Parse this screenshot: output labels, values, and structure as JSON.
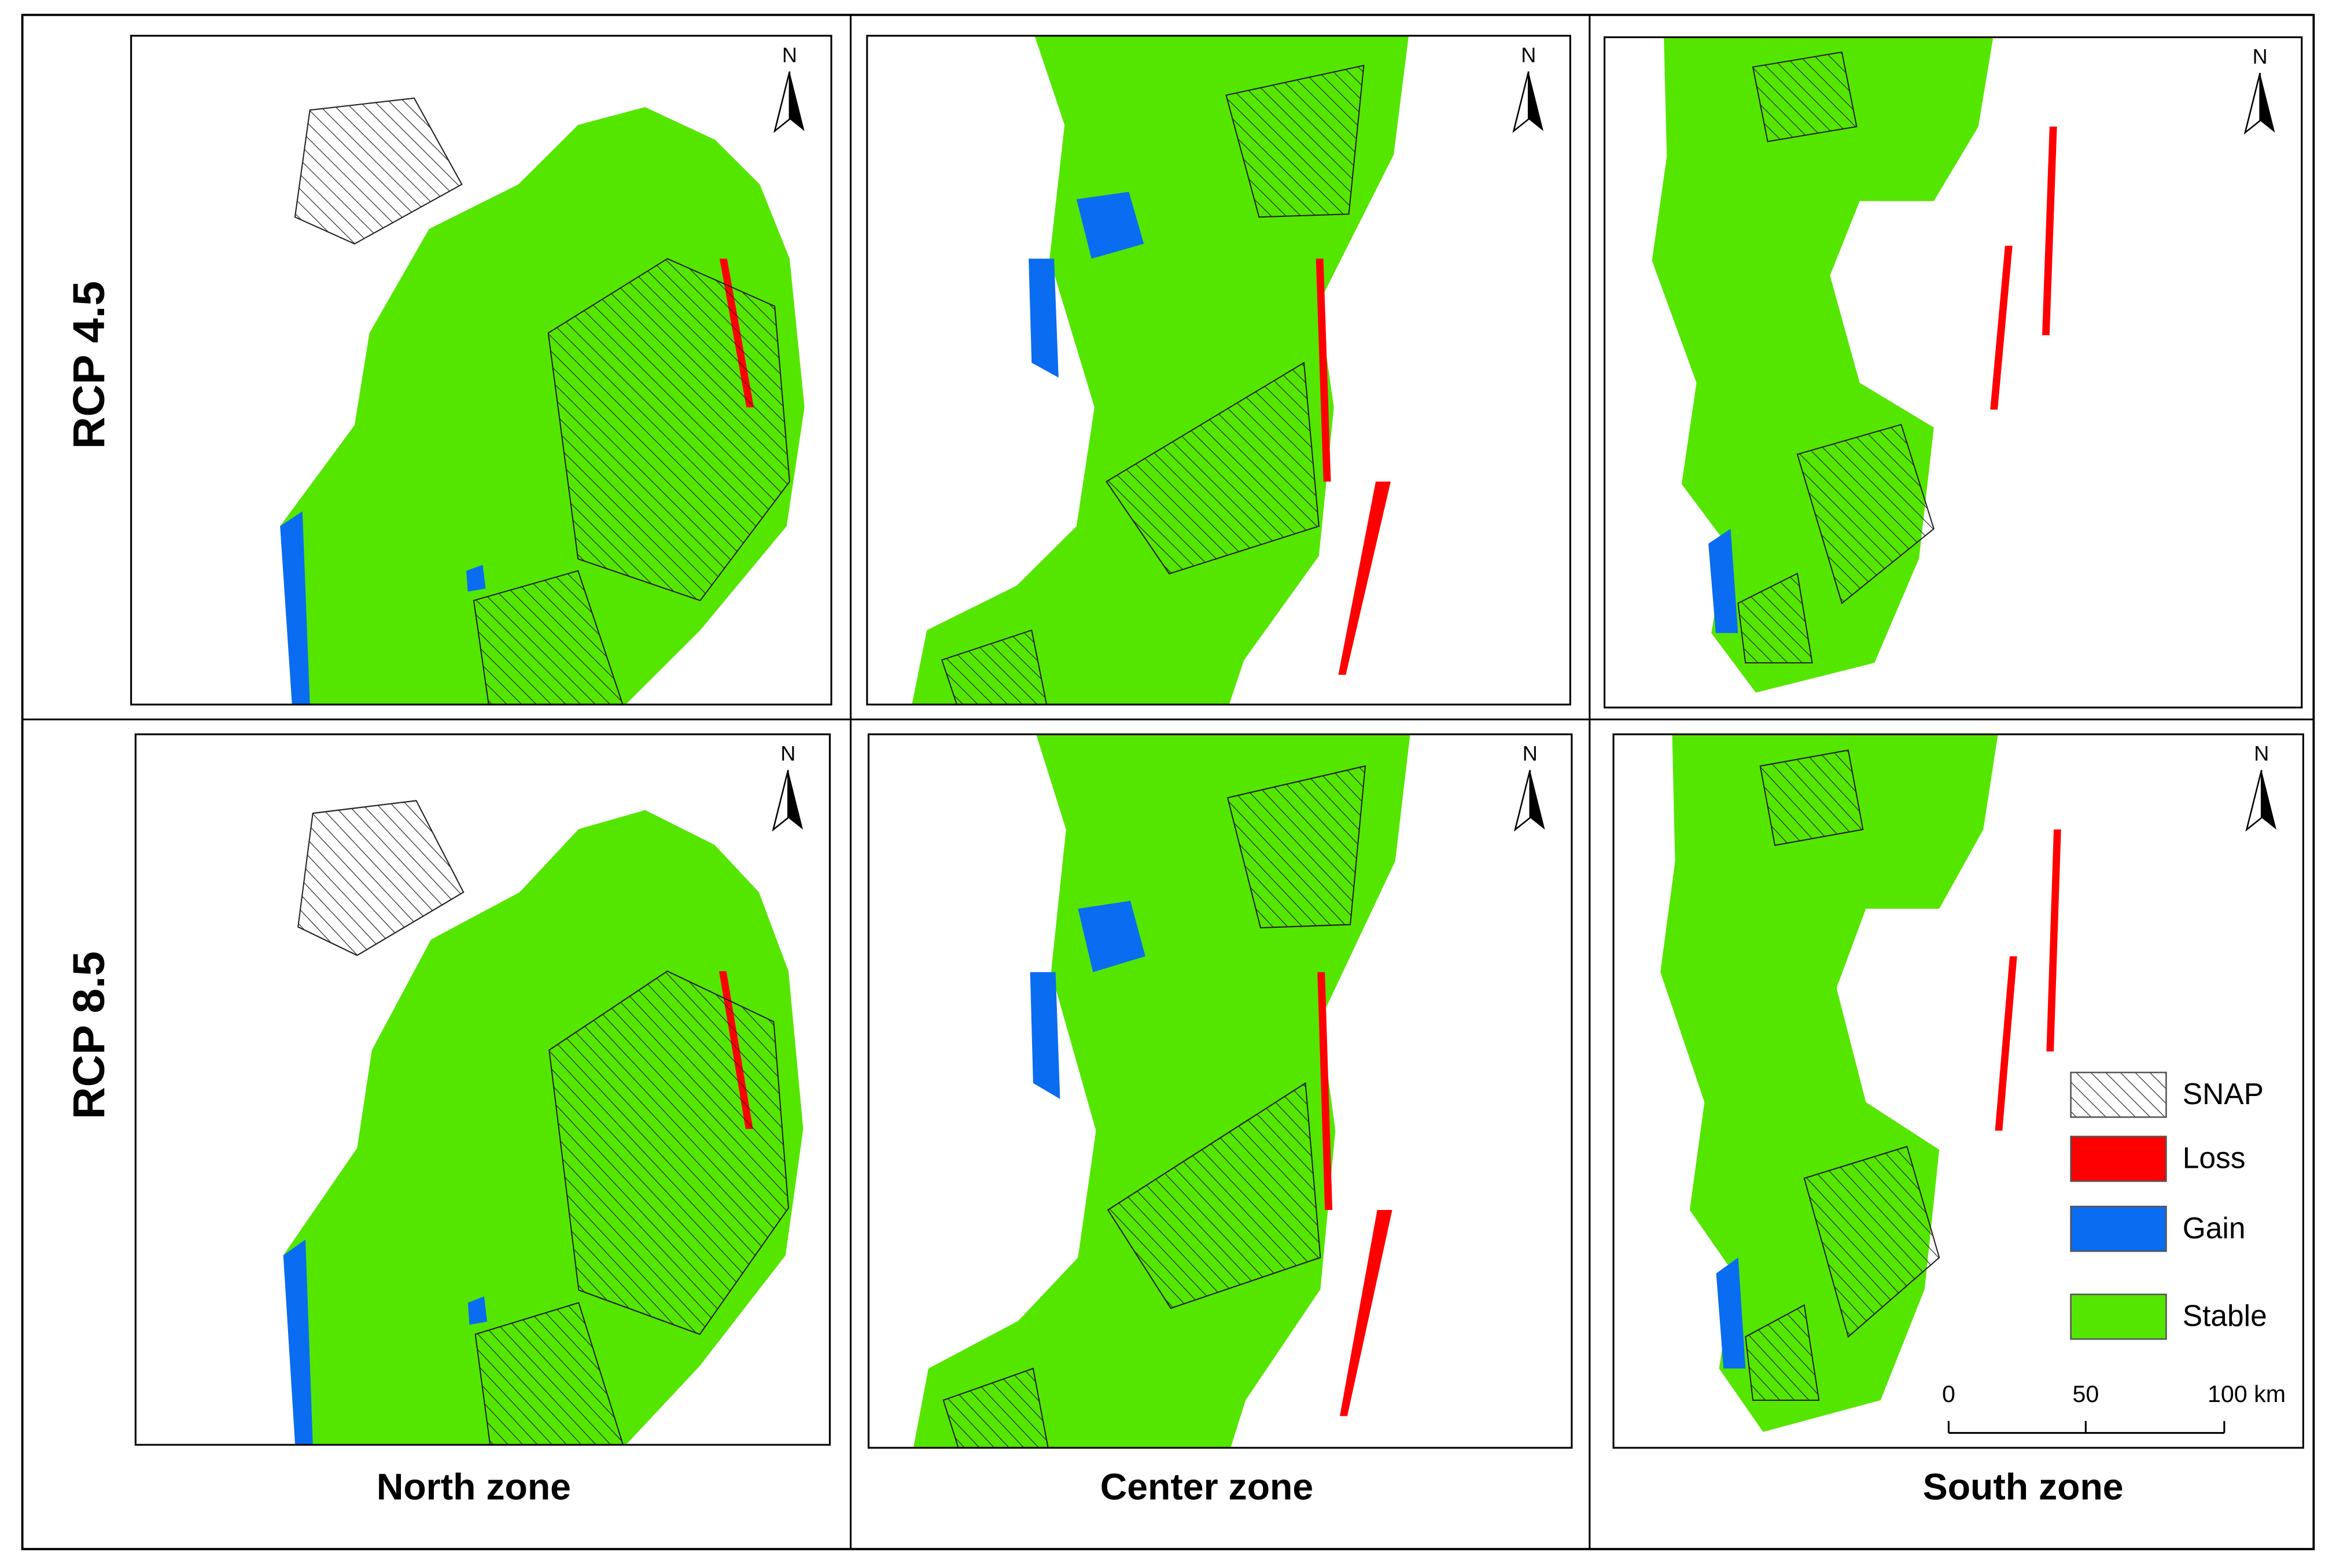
{
  "row_labels": [
    "RCP 4.5",
    "RCP 8.5"
  ],
  "column_labels": [
    "North zone",
    "Center zone",
    "South zone"
  ],
  "north_label": "N",
  "legend": [
    {
      "label": "SNAP"
    },
    {
      "label": "Loss",
      "color": "#ff0000"
    },
    {
      "label": "Gain",
      "color": "#0a6cf0"
    },
    {
      "label": "Stable",
      "color": "#55e600"
    }
  ],
  "scale_bar": {
    "labels": [
      "0",
      "50",
      "100 km"
    ]
  }
}
